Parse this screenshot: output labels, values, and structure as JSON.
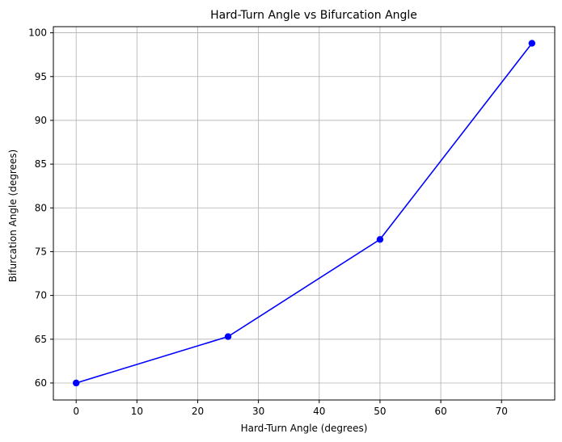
{
  "chart_data": {
    "type": "line",
    "title": "Hard-Turn Angle vs Bifurcation Angle",
    "xlabel": "Hard-Turn Angle (degrees)",
    "ylabel": "Bifurcation Angle (degrees)",
    "xlim": [
      -3.75,
      78.75
    ],
    "ylim": [
      58.06,
      100.7
    ],
    "xticks": [
      0,
      10,
      20,
      30,
      40,
      50,
      60,
      70
    ],
    "yticks": [
      60,
      65,
      70,
      75,
      80,
      85,
      90,
      95,
      100
    ],
    "grid": true,
    "series": [
      {
        "x": [
          0,
          25,
          50,
          75
        ],
        "y": [
          60.0,
          65.3,
          76.4,
          98.8
        ],
        "color": "#0000ff",
        "marker": "circle"
      }
    ]
  }
}
